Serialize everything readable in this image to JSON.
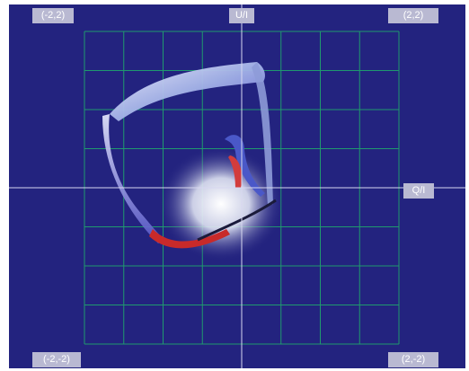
{
  "viewer": {
    "background_color": "#23237f",
    "grid_color": "#1f9a6e",
    "axis_color": "#d7d7f0",
    "label_bg_color": "#b9b9d2",
    "corner_labels": {
      "top_left": "(-2,2)",
      "top_right": "(2,2)",
      "bottom_left": "(-2,-2)",
      "bottom_right": "(2,-2)"
    },
    "axis_labels": {
      "vertical": "U/I",
      "horizontal": "Q/I"
    },
    "grid": {
      "divisions": 8,
      "range": [
        -2,
        2
      ]
    }
  }
}
